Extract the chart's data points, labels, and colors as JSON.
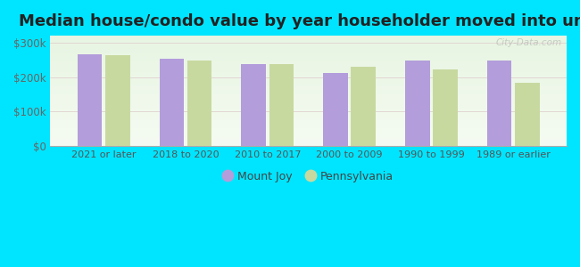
{
  "title": "Median house/condo value by year householder moved into unit",
  "categories": [
    "2021 or later",
    "2018 to 2020",
    "2010 to 2017",
    "2000 to 2009",
    "1990 to 1999",
    "1989 or earlier"
  ],
  "mount_joy_values": [
    265000,
    252000,
    238000,
    213000,
    247000,
    249000
  ],
  "pennsylvania_values": [
    263000,
    247000,
    238000,
    230000,
    222000,
    183000
  ],
  "mount_joy_color": "#b39ddb",
  "pennsylvania_color": "#c8d9a0",
  "background_color": "#00e5ff",
  "plot_bg_gradient_top": "#e8f5e2",
  "plot_bg_gradient_bottom": "#f5fbf2",
  "ylim": [
    0,
    320000
  ],
  "yticks": [
    0,
    100000,
    200000,
    300000
  ],
  "ytick_labels": [
    "$0",
    "$100k",
    "$200k",
    "$300k"
  ],
  "bar_width": 0.3,
  "legend_labels": [
    "Mount Joy",
    "Pennsylvania"
  ],
  "title_fontsize": 13,
  "watermark": "City-Data.com"
}
